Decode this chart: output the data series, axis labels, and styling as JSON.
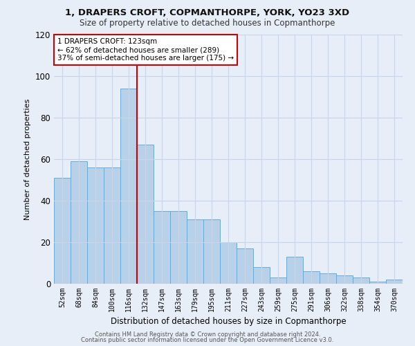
{
  "title1": "1, DRAPERS CROFT, COPMANTHORPE, YORK, YO23 3XD",
  "title2": "Size of property relative to detached houses in Copmanthorpe",
  "xlabel": "Distribution of detached houses by size in Copmanthorpe",
  "ylabel": "Number of detached properties",
  "categories": [
    "52sqm",
    "68sqm",
    "84sqm",
    "100sqm",
    "116sqm",
    "132sqm",
    "147sqm",
    "163sqm",
    "179sqm",
    "195sqm",
    "211sqm",
    "227sqm",
    "243sqm",
    "259sqm",
    "275sqm",
    "291sqm",
    "306sqm",
    "322sqm",
    "338sqm",
    "354sqm",
    "370sqm"
  ],
  "values": [
    51,
    59,
    56,
    56,
    94,
    67,
    35,
    35,
    31,
    31,
    20,
    17,
    8,
    3,
    13,
    6,
    5,
    4,
    3,
    1,
    2
  ],
  "bar_color": "#b8d0e8",
  "bar_edge_color": "#6aaad4",
  "vline_color": "#cc0000",
  "annotation_text": "1 DRAPERS CROFT: 123sqm\n← 62% of detached houses are smaller (289)\n37% of semi-detached houses are larger (175) →",
  "annotation_box_color": "#ffffff",
  "annotation_box_edge_color": "#cc0000",
  "ylim": [
    0,
    120
  ],
  "yticks": [
    0,
    20,
    40,
    60,
    80,
    100,
    120
  ],
  "footer1": "Contains HM Land Registry data © Crown copyright and database right 2024.",
  "footer2": "Contains public sector information licensed under the Open Government Licence v3.0.",
  "bg_color": "#e8eef8",
  "plot_bg_color": "#e8eef8",
  "grid_color": "#c8d4e8"
}
